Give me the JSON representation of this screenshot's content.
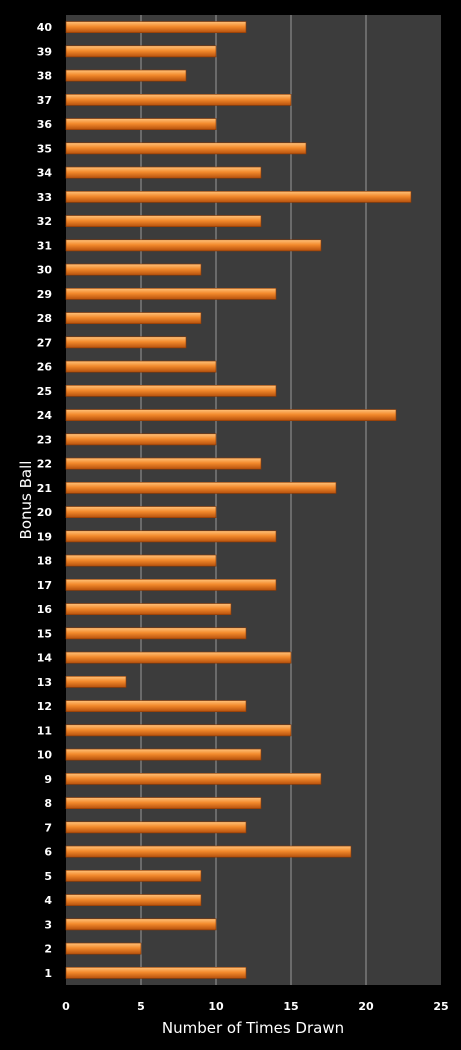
{
  "chart_data": {
    "type": "bar",
    "orientation": "horizontal",
    "xlabel": "Number of Times Drawn",
    "ylabel": "Bonus Ball",
    "xlim": [
      0,
      25
    ],
    "x_ticks": [
      0,
      5,
      10,
      15,
      20,
      25
    ],
    "grid": true,
    "categories": [
      "1",
      "2",
      "3",
      "4",
      "5",
      "6",
      "7",
      "8",
      "9",
      "10",
      "11",
      "12",
      "13",
      "14",
      "15",
      "16",
      "17",
      "18",
      "19",
      "20",
      "21",
      "22",
      "23",
      "24",
      "25",
      "26",
      "27",
      "28",
      "29",
      "30",
      "31",
      "32",
      "33",
      "34",
      "35",
      "36",
      "37",
      "38",
      "39",
      "40"
    ],
    "values": [
      12,
      5,
      10,
      9,
      9,
      19,
      12,
      13,
      17,
      13,
      15,
      12,
      4,
      15,
      12,
      11,
      14,
      10,
      14,
      10,
      18,
      13,
      10,
      22,
      14,
      10,
      8,
      9,
      14,
      9,
      17,
      13,
      23,
      13,
      16,
      10,
      15,
      8,
      10,
      12
    ],
    "colors": {
      "background": "#000000",
      "plot_area": "#3c3c3c",
      "bar": "#f07a1e",
      "gridline": "#9a9a9a",
      "text": "#ffffff"
    }
  }
}
